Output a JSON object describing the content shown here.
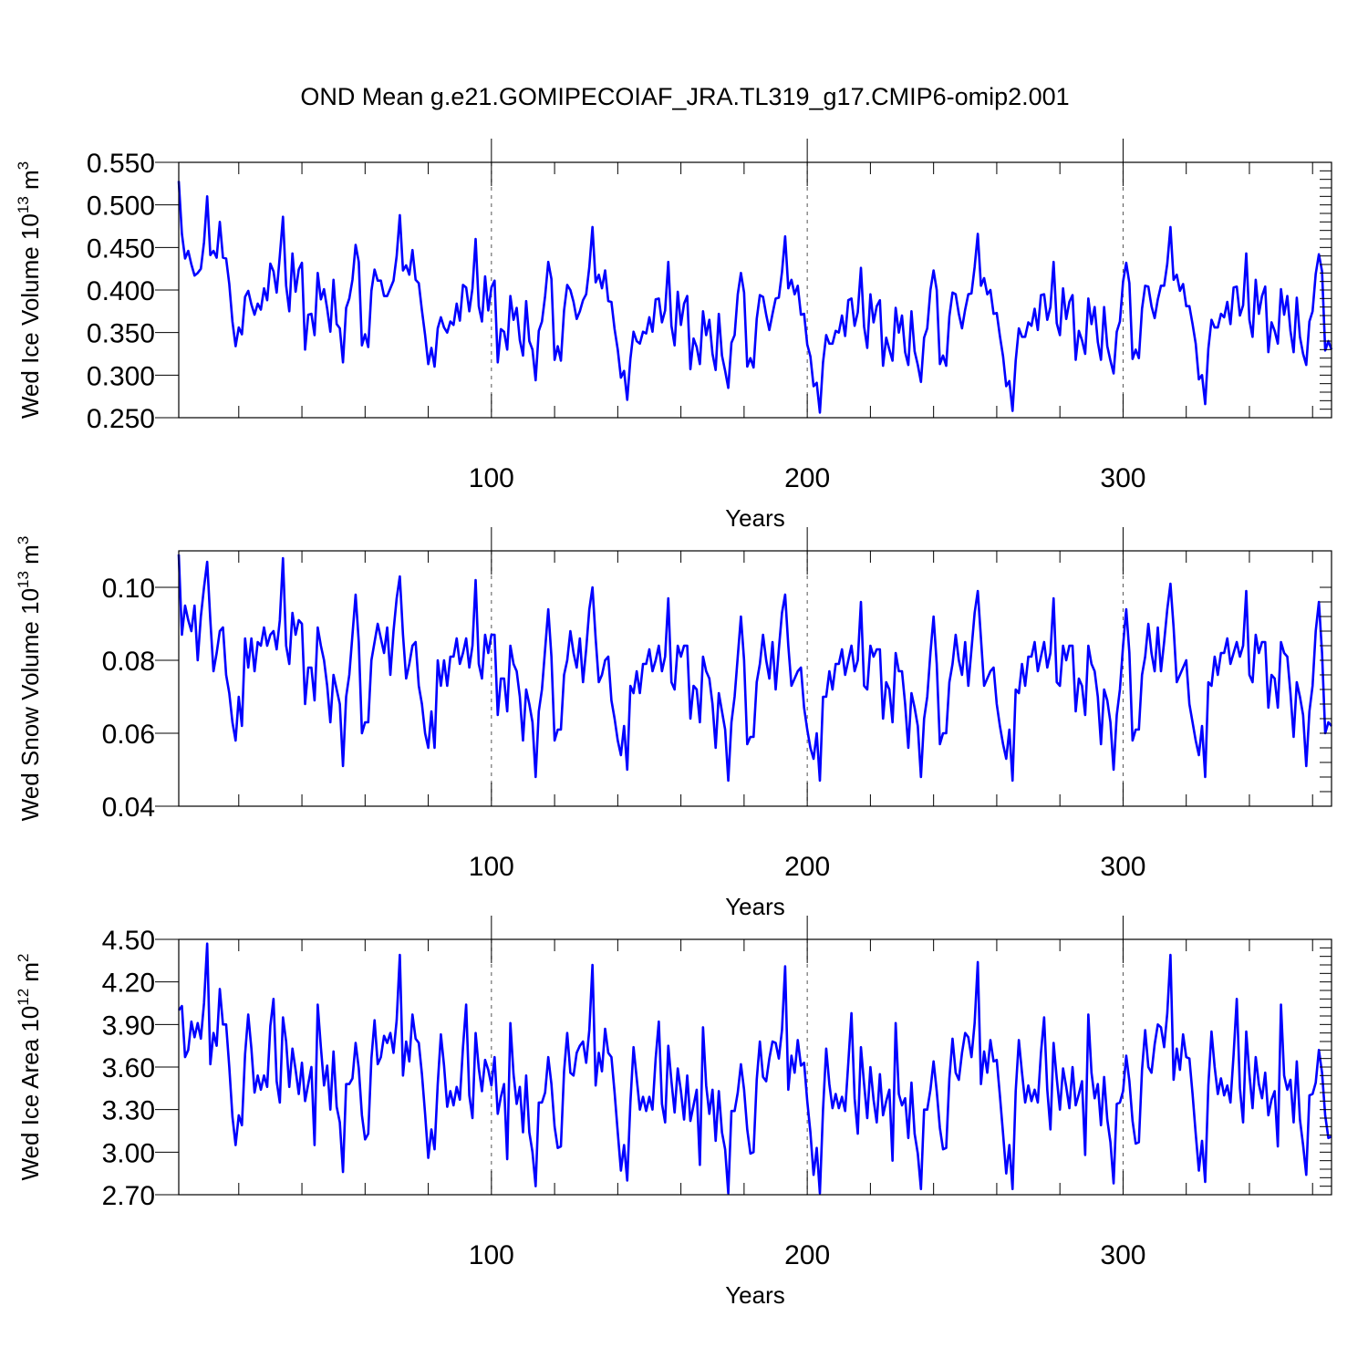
{
  "figure_title": "OND Mean g.e21.GOMIPECOIAF_JRA.TL319_g17.CMIP6-omip2.001",
  "colors": {
    "line": "#0000ff",
    "axis": "#000000",
    "grid": "#555555"
  },
  "chart_data": [
    {
      "type": "line",
      "title": "",
      "xlabel": "Years",
      "ylabel_main": "Wed Ice Volume 10",
      "ylabel_exp": "13",
      "ylabel_unit": " m",
      "ylabel_unit_exp": "3",
      "xlim": [
        1,
        366
      ],
      "ylim": [
        0.25,
        0.55
      ],
      "x_ticks": [
        100,
        200,
        300
      ],
      "x_tick_labels": [
        "100",
        "200",
        "300"
      ],
      "y_ticks": [
        0.25,
        0.3,
        0.35,
        0.4,
        0.45,
        0.5,
        0.55
      ],
      "y_tick_labels": [
        "0.250",
        "0.300",
        "0.350",
        "0.400",
        "0.450",
        "0.500",
        "0.550"
      ],
      "grid_x": true,
      "x_start": 1,
      "values": [
        0.528,
        0.466,
        0.437,
        0.446,
        0.43,
        0.417,
        0.42,
        0.425,
        0.456,
        0.51,
        0.441,
        0.446,
        0.438,
        0.48,
        0.438,
        0.437,
        0.407,
        0.363,
        0.334,
        0.356,
        0.348,
        0.392,
        0.399,
        0.383,
        0.371,
        0.384,
        0.377,
        0.402,
        0.388,
        0.431,
        0.422,
        0.397,
        0.44,
        0.486,
        0.405,
        0.375,
        0.443,
        0.398,
        0.424,
        0.432,
        0.33,
        0.371,
        0.372,
        0.347,
        0.42,
        0.389,
        0.401,
        0.378,
        0.351,
        0.412,
        0.36,
        0.355,
        0.315,
        0.379,
        0.39,
        0.412,
        0.453,
        0.433,
        0.335,
        0.348,
        0.333,
        0.399,
        0.424,
        0.411,
        0.411,
        0.393,
        0.393,
        0.402,
        0.411,
        0.44,
        0.488,
        0.423,
        0.429,
        0.418,
        0.447,
        0.412,
        0.408,
        0.376,
        0.347,
        0.313,
        0.332,
        0.31,
        0.355,
        0.368,
        0.356,
        0.35,
        0.363,
        0.359,
        0.384,
        0.364,
        0.406,
        0.403,
        0.375,
        0.402,
        0.46,
        0.381,
        0.363,
        0.416,
        0.376,
        0.403,
        0.411,
        0.315,
        0.354,
        0.351,
        0.33,
        0.393,
        0.365,
        0.379,
        0.341,
        0.323,
        0.387,
        0.34,
        0.33,
        0.294,
        0.352,
        0.363,
        0.393,
        0.433,
        0.413,
        0.318,
        0.334,
        0.317,
        0.376,
        0.406,
        0.4,
        0.386,
        0.366,
        0.375,
        0.388,
        0.395,
        0.427,
        0.474,
        0.409,
        0.418,
        0.402,
        0.423,
        0.387,
        0.386,
        0.354,
        0.33,
        0.297,
        0.305,
        0.271,
        0.319,
        0.351,
        0.34,
        0.337,
        0.351,
        0.349,
        0.368,
        0.351,
        0.389,
        0.39,
        0.362,
        0.376,
        0.433,
        0.358,
        0.335,
        0.398,
        0.359,
        0.384,
        0.393,
        0.307,
        0.343,
        0.333,
        0.313,
        0.375,
        0.347,
        0.365,
        0.325,
        0.306,
        0.372,
        0.323,
        0.305,
        0.285,
        0.338,
        0.347,
        0.395,
        0.42,
        0.397,
        0.31,
        0.32,
        0.309,
        0.366,
        0.394,
        0.392,
        0.371,
        0.353,
        0.372,
        0.39,
        0.391,
        0.421,
        0.463,
        0.402,
        0.412,
        0.395,
        0.405,
        0.371,
        0.372,
        0.336,
        0.322,
        0.287,
        0.291,
        0.256,
        0.315,
        0.347,
        0.337,
        0.337,
        0.352,
        0.35,
        0.37,
        0.346,
        0.388,
        0.39,
        0.358,
        0.374,
        0.426,
        0.357,
        0.332,
        0.395,
        0.362,
        0.381,
        0.388,
        0.311,
        0.344,
        0.33,
        0.317,
        0.379,
        0.35,
        0.37,
        0.327,
        0.312,
        0.375,
        0.328,
        0.312,
        0.292,
        0.344,
        0.355,
        0.4,
        0.423,
        0.4,
        0.313,
        0.323,
        0.311,
        0.369,
        0.397,
        0.395,
        0.372,
        0.355,
        0.377,
        0.395,
        0.396,
        0.427,
        0.466,
        0.405,
        0.414,
        0.395,
        0.4,
        0.372,
        0.373,
        0.346,
        0.322,
        0.287,
        0.293,
        0.258,
        0.317,
        0.355,
        0.345,
        0.345,
        0.362,
        0.358,
        0.378,
        0.353,
        0.394,
        0.395,
        0.365,
        0.38,
        0.433,
        0.361,
        0.347,
        0.402,
        0.366,
        0.386,
        0.394,
        0.318,
        0.352,
        0.341,
        0.325,
        0.39,
        0.36,
        0.38,
        0.339,
        0.318,
        0.38,
        0.334,
        0.317,
        0.302,
        0.351,
        0.363,
        0.41,
        0.432,
        0.408,
        0.319,
        0.33,
        0.32,
        0.378,
        0.405,
        0.404,
        0.381,
        0.367,
        0.389,
        0.405,
        0.405,
        0.431,
        0.474,
        0.412,
        0.418,
        0.399,
        0.407,
        0.381,
        0.381,
        0.36,
        0.337,
        0.295,
        0.3,
        0.266,
        0.331,
        0.365,
        0.356,
        0.356,
        0.372,
        0.368,
        0.386,
        0.36,
        0.403,
        0.404,
        0.37,
        0.382,
        0.443,
        0.365,
        0.345,
        0.412,
        0.372,
        0.393,
        0.404,
        0.327,
        0.362,
        0.352,
        0.337,
        0.401,
        0.371,
        0.393,
        0.352,
        0.327,
        0.391,
        0.345,
        0.325,
        0.312,
        0.363,
        0.375,
        0.419,
        0.442,
        0.422,
        0.329,
        0.34,
        0.33
      ]
    },
    {
      "type": "line",
      "title": "",
      "xlabel": "Years",
      "ylabel_main": "Wed Snow Volume 10",
      "ylabel_exp": "13",
      "ylabel_unit": " m",
      "ylabel_unit_exp": "3",
      "xlim": [
        1,
        366
      ],
      "ylim": [
        0.04,
        0.11
      ],
      "x_ticks": [
        100,
        200,
        300
      ],
      "x_tick_labels": [
        "100",
        "200",
        "300"
      ],
      "y_ticks": [
        0.04,
        0.06,
        0.08,
        0.1
      ],
      "y_tick_labels": [
        "0.04",
        "0.06",
        "0.08",
        "0.10"
      ],
      "grid_x": true,
      "x_start": 1,
      "values": [
        0.109,
        0.087,
        0.095,
        0.091,
        0.088,
        0.095,
        0.08,
        0.092,
        0.1,
        0.107,
        0.091,
        0.077,
        0.082,
        0.088,
        0.089,
        0.076,
        0.071,
        0.063,
        0.058,
        0.07,
        0.062,
        0.086,
        0.078,
        0.086,
        0.077,
        0.085,
        0.084,
        0.089,
        0.084,
        0.087,
        0.088,
        0.083,
        0.091,
        0.108,
        0.084,
        0.079,
        0.093,
        0.087,
        0.091,
        0.09,
        0.068,
        0.078,
        0.078,
        0.069,
        0.089,
        0.084,
        0.08,
        0.073,
        0.063,
        0.076,
        0.072,
        0.068,
        0.051,
        0.07,
        0.076,
        0.087,
        0.098,
        0.085,
        0.06,
        0.063,
        0.063,
        0.08,
        0.085,
        0.09,
        0.086,
        0.082,
        0.089,
        0.076,
        0.088,
        0.097,
        0.103,
        0.087,
        0.075,
        0.079,
        0.084,
        0.085,
        0.073,
        0.068,
        0.06,
        0.056,
        0.066,
        0.056,
        0.08,
        0.073,
        0.08,
        0.073,
        0.081,
        0.081,
        0.086,
        0.079,
        0.082,
        0.086,
        0.078,
        0.084,
        0.102,
        0.079,
        0.075,
        0.087,
        0.082,
        0.087,
        0.087,
        0.065,
        0.075,
        0.075,
        0.066,
        0.084,
        0.079,
        0.077,
        0.07,
        0.058,
        0.072,
        0.068,
        0.063,
        0.048,
        0.066,
        0.072,
        0.083,
        0.094,
        0.081,
        0.058,
        0.061,
        0.061,
        0.076,
        0.08,
        0.088,
        0.082,
        0.078,
        0.086,
        0.074,
        0.083,
        0.094,
        0.1,
        0.086,
        0.074,
        0.076,
        0.08,
        0.081,
        0.069,
        0.064,
        0.058,
        0.054,
        0.062,
        0.05,
        0.073,
        0.071,
        0.077,
        0.071,
        0.079,
        0.079,
        0.083,
        0.077,
        0.08,
        0.084,
        0.077,
        0.081,
        0.097,
        0.074,
        0.072,
        0.084,
        0.081,
        0.084,
        0.084,
        0.064,
        0.073,
        0.072,
        0.063,
        0.081,
        0.077,
        0.075,
        0.068,
        0.056,
        0.071,
        0.066,
        0.061,
        0.047,
        0.063,
        0.07,
        0.081,
        0.092,
        0.08,
        0.057,
        0.059,
        0.059,
        0.074,
        0.079,
        0.087,
        0.08,
        0.075,
        0.085,
        0.072,
        0.083,
        0.093,
        0.098,
        0.084,
        0.073,
        0.075,
        0.077,
        0.078,
        0.067,
        0.061,
        0.056,
        0.053,
        0.06,
        0.047,
        0.07,
        0.07,
        0.077,
        0.072,
        0.079,
        0.079,
        0.083,
        0.076,
        0.08,
        0.084,
        0.077,
        0.08,
        0.096,
        0.073,
        0.072,
        0.084,
        0.081,
        0.083,
        0.083,
        0.064,
        0.074,
        0.072,
        0.063,
        0.082,
        0.077,
        0.077,
        0.068,
        0.056,
        0.071,
        0.067,
        0.062,
        0.048,
        0.064,
        0.07,
        0.082,
        0.092,
        0.079,
        0.057,
        0.06,
        0.06,
        0.074,
        0.079,
        0.087,
        0.08,
        0.076,
        0.085,
        0.073,
        0.083,
        0.093,
        0.099,
        0.086,
        0.073,
        0.075,
        0.077,
        0.078,
        0.068,
        0.062,
        0.057,
        0.053,
        0.061,
        0.047,
        0.072,
        0.071,
        0.079,
        0.073,
        0.081,
        0.081,
        0.085,
        0.077,
        0.081,
        0.085,
        0.078,
        0.082,
        0.097,
        0.074,
        0.073,
        0.084,
        0.08,
        0.084,
        0.084,
        0.066,
        0.075,
        0.073,
        0.065,
        0.084,
        0.079,
        0.077,
        0.07,
        0.057,
        0.072,
        0.069,
        0.063,
        0.05,
        0.065,
        0.072,
        0.084,
        0.094,
        0.082,
        0.058,
        0.061,
        0.061,
        0.076,
        0.081,
        0.09,
        0.082,
        0.077,
        0.089,
        0.077,
        0.085,
        0.094,
        0.101,
        0.089,
        0.074,
        0.076,
        0.078,
        0.08,
        0.068,
        0.063,
        0.058,
        0.054,
        0.062,
        0.048,
        0.074,
        0.073,
        0.081,
        0.076,
        0.082,
        0.082,
        0.086,
        0.079,
        0.082,
        0.085,
        0.081,
        0.084,
        0.099,
        0.076,
        0.074,
        0.087,
        0.082,
        0.085,
        0.085,
        0.067,
        0.076,
        0.075,
        0.067,
        0.085,
        0.082,
        0.081,
        0.071,
        0.059,
        0.074,
        0.07,
        0.065,
        0.051,
        0.066,
        0.073,
        0.088,
        0.096,
        0.082,
        0.06,
        0.063,
        0.062
      ]
    },
    {
      "type": "line",
      "title": "",
      "xlabel": "Years",
      "ylabel_main": "Wed Ice Area 10",
      "ylabel_exp": "12",
      "ylabel_unit": " m",
      "ylabel_unit_exp": "2",
      "xlim": [
        1,
        366
      ],
      "ylim": [
        2.7,
        4.5
      ],
      "x_ticks": [
        100,
        200,
        300
      ],
      "x_tick_labels": [
        "100",
        "200",
        "300"
      ],
      "y_ticks": [
        2.7,
        3.0,
        3.3,
        3.6,
        3.9,
        4.2,
        4.5
      ],
      "y_tick_labels": [
        "2.70",
        "3.00",
        "3.30",
        "3.60",
        "3.90",
        "4.20",
        "4.50"
      ],
      "grid_x": true,
      "x_start": 1,
      "values": [
        4.0,
        4.03,
        3.67,
        3.72,
        3.92,
        3.81,
        3.91,
        3.8,
        4.05,
        4.47,
        3.62,
        3.84,
        3.75,
        4.15,
        3.9,
        3.9,
        3.6,
        3.25,
        3.05,
        3.26,
        3.19,
        3.69,
        3.97,
        3.73,
        3.42,
        3.54,
        3.44,
        3.54,
        3.46,
        3.89,
        4.08,
        3.5,
        3.35,
        3.95,
        3.78,
        3.46,
        3.73,
        3.58,
        3.41,
        3.63,
        3.36,
        3.48,
        3.6,
        3.05,
        4.04,
        3.74,
        3.47,
        3.61,
        3.3,
        3.71,
        3.32,
        3.21,
        2.86,
        3.48,
        3.48,
        3.52,
        3.77,
        3.59,
        3.26,
        3.09,
        3.13,
        3.66,
        3.93,
        3.62,
        3.67,
        3.82,
        3.77,
        3.84,
        3.7,
        3.93,
        4.39,
        3.54,
        3.78,
        3.64,
        3.97,
        3.8,
        3.77,
        3.55,
        3.27,
        2.96,
        3.16,
        3.02,
        3.48,
        3.83,
        3.61,
        3.32,
        3.43,
        3.33,
        3.46,
        3.37,
        3.74,
        4.04,
        3.4,
        3.24,
        3.84,
        3.59,
        3.43,
        3.65,
        3.58,
        3.47,
        3.67,
        3.27,
        3.39,
        3.48,
        2.95,
        3.91,
        3.55,
        3.34,
        3.46,
        3.14,
        3.54,
        3.14,
        3.0,
        2.76,
        3.35,
        3.35,
        3.42,
        3.67,
        3.48,
        3.18,
        3.03,
        3.04,
        3.57,
        3.84,
        3.56,
        3.54,
        3.7,
        3.75,
        3.78,
        3.63,
        3.86,
        4.32,
        3.47,
        3.7,
        3.57,
        3.87,
        3.7,
        3.67,
        3.42,
        3.14,
        2.87,
        3.05,
        2.8,
        3.35,
        3.74,
        3.52,
        3.3,
        3.39,
        3.29,
        3.39,
        3.3,
        3.66,
        3.92,
        3.34,
        3.21,
        3.75,
        3.5,
        3.28,
        3.59,
        3.43,
        3.23,
        3.54,
        3.22,
        3.33,
        3.44,
        2.91,
        3.88,
        3.47,
        3.27,
        3.44,
        3.08,
        3.43,
        3.14,
        3.02,
        2.71,
        3.29,
        3.29,
        3.42,
        3.62,
        3.44,
        3.16,
        2.99,
        3.0,
        3.51,
        3.78,
        3.53,
        3.5,
        3.66,
        3.78,
        3.77,
        3.66,
        3.86,
        4.31,
        3.44,
        3.68,
        3.56,
        3.79,
        3.61,
        3.63,
        3.36,
        3.14,
        2.84,
        3.03,
        2.71,
        3.3,
        3.73,
        3.48,
        3.31,
        3.41,
        3.31,
        3.39,
        3.29,
        3.63,
        3.98,
        3.38,
        3.13,
        3.74,
        3.48,
        3.24,
        3.6,
        3.37,
        3.21,
        3.55,
        3.26,
        3.36,
        3.44,
        2.94,
        3.91,
        3.41,
        3.33,
        3.38,
        3.1,
        3.49,
        3.13,
        2.99,
        2.74,
        3.3,
        3.3,
        3.44,
        3.64,
        3.43,
        3.17,
        3.02,
        3.03,
        3.52,
        3.8,
        3.56,
        3.51,
        3.7,
        3.84,
        3.81,
        3.67,
        3.91,
        4.34,
        3.48,
        3.71,
        3.56,
        3.79,
        3.64,
        3.65,
        3.4,
        3.13,
        2.85,
        3.05,
        2.74,
        3.43,
        3.79,
        3.56,
        3.35,
        3.47,
        3.36,
        3.44,
        3.35,
        3.7,
        3.95,
        3.44,
        3.16,
        3.77,
        3.52,
        3.3,
        3.59,
        3.46,
        3.31,
        3.6,
        3.33,
        3.41,
        3.5,
        2.98,
        3.97,
        3.56,
        3.38,
        3.48,
        3.19,
        3.53,
        3.23,
        3.07,
        2.78,
        3.34,
        3.35,
        3.43,
        3.68,
        3.5,
        3.22,
        3.06,
        3.07,
        3.58,
        3.86,
        3.6,
        3.56,
        3.76,
        3.9,
        3.88,
        3.74,
        3.98,
        4.39,
        3.51,
        3.73,
        3.58,
        3.83,
        3.67,
        3.66,
        3.41,
        3.13,
        2.87,
        3.08,
        2.79,
        3.47,
        3.85,
        3.6,
        3.41,
        3.52,
        3.4,
        3.47,
        3.35,
        3.69,
        4.08,
        3.45,
        3.21,
        3.85,
        3.55,
        3.31,
        3.67,
        3.48,
        3.38,
        3.56,
        3.26,
        3.37,
        3.43,
        3.04,
        4.04,
        3.54,
        3.44,
        3.51,
        3.21,
        3.64,
        3.23,
        3.05,
        2.84,
        3.4,
        3.41,
        3.49,
        3.72,
        3.56,
        3.26,
        3.1,
        3.11
      ]
    }
  ]
}
